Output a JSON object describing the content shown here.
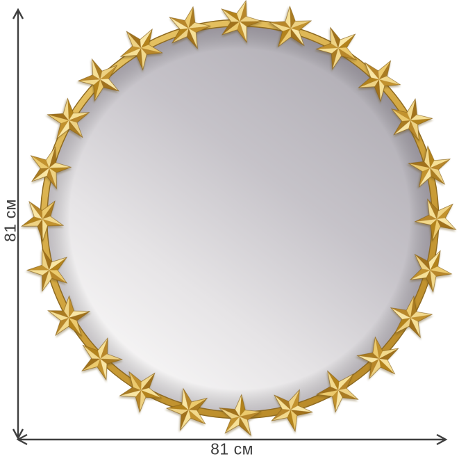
{
  "page": {
    "background_color": "#ffffff"
  },
  "dimension_annotations": {
    "height": {
      "label": "81 см"
    },
    "width": {
      "label": "81 см"
    },
    "arrow_color": "#3f3f3f",
    "label_color": "#3c3c3c"
  },
  "product_image": {
    "description": "round wall mirror with gold star-ornament frame",
    "star_count": 24,
    "colors": {
      "glass_top": "#b0adb4",
      "glass_mid": "#c6c3c9",
      "glass_light": "#e6e4e6",
      "glass_bottom": "#f8f7f7",
      "glass_rim_shadow": "rgba(70,60,75,0.28)",
      "ring_light": "#e8c566",
      "ring_mid": "#cfa23c",
      "ring_dark": "#b98a28",
      "ring_edge": "#8f6b22",
      "star_outline": "#8a6318",
      "star_shadow": "#6b501a",
      "gold_light": [
        "#f6e096",
        "#eed283",
        "#f9e6a4",
        "#ecca6d",
        "#f2d98c"
      ],
      "gold_dark": [
        "#b8872a",
        "#aa7c20",
        "#c2922e",
        "#a1721c",
        "#b3831f"
      ]
    }
  }
}
